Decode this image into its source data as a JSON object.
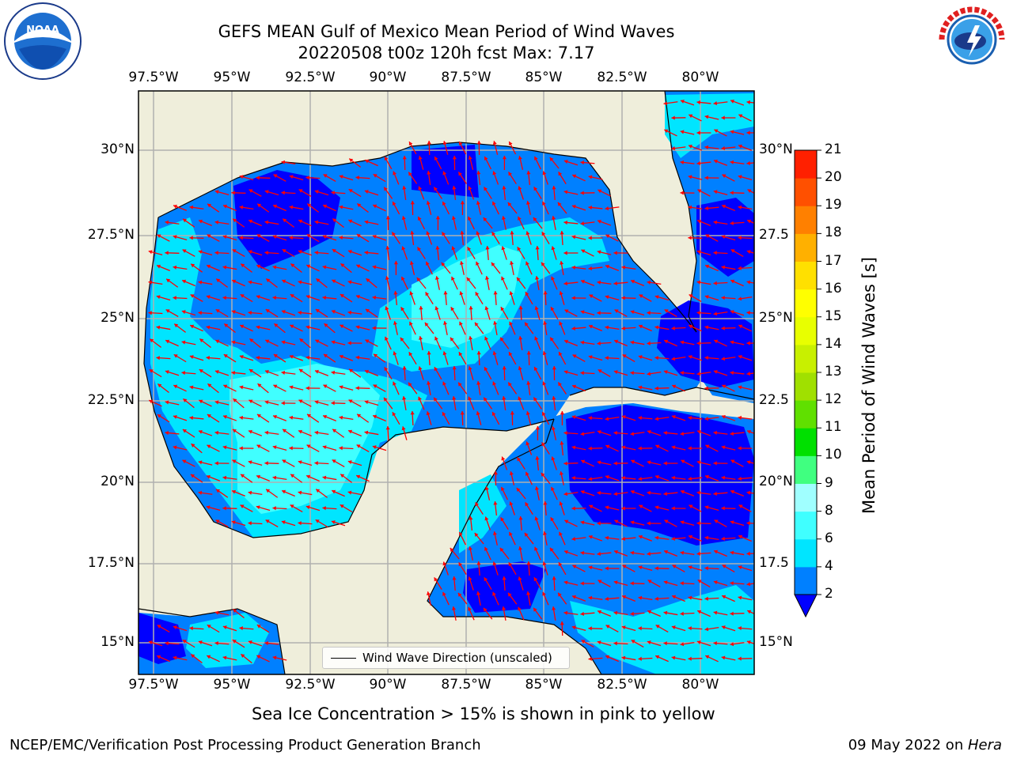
{
  "title": {
    "line1": "GEFS MEAN Gulf of Mexico Mean Period of Wind Waves",
    "line2": "20220508 t00z 120h fcst   Max: 7.17"
  },
  "axes": {
    "lon_ticks": [
      "97.5°W",
      "95°W",
      "92.5°W",
      "90°W",
      "87.5°W",
      "85°W",
      "82.5°W",
      "80°W"
    ],
    "lat_ticks_left": [
      "30°N",
      "27.5°N",
      "25°N",
      "22.5°N",
      "20°N",
      "17.5°N",
      "15°N"
    ],
    "lat_ticks_right": [
      "30°N",
      "27.5",
      "25°N",
      "22.5",
      "20°N",
      "17.5",
      "15°N"
    ]
  },
  "legend": {
    "label": "Wind Wave Direction (unscaled)"
  },
  "colorbar": {
    "title": "Mean Period of Wind Waves [s]",
    "levels": [
      "2",
      "4",
      "6",
      "8",
      "9",
      "10",
      "11",
      "12",
      "13",
      "14",
      "15",
      "16",
      "17",
      "18",
      "19",
      "20",
      "21"
    ],
    "colors": [
      "#0080ff",
      "#00e5ff",
      "#40ffff",
      "#a0ffff",
      "#40ff80",
      "#00e000",
      "#60e000",
      "#a0e000",
      "#c8f000",
      "#e8ff00",
      "#ffff00",
      "#ffe000",
      "#ffb000",
      "#ff8000",
      "#ff5000",
      "#ff2000",
      "#ff0000"
    ],
    "under_color": "#0000ff"
  },
  "colors": {
    "land": "#efeedb",
    "sea_2_4": "#0080ff",
    "sea_under": "#0000ff",
    "sea_4_6": "#00e5ff",
    "sea_6_8": "#40ffff",
    "sea_8_9": "#a0ffff",
    "arrow": "#ff0000",
    "grid": "#b0b0b0"
  },
  "icons": {
    "left_logo": "noaa-logo",
    "right_logo": "nws-logo"
  },
  "logo_text": {
    "noaa_center": "NOAA",
    "noaa_ring": "NATIONAL OCEANIC AND ATMOSPHERIC ADMINISTRATION · U.S. DEPARTMENT OF COMMERCE",
    "nws_ring": "NATIONAL WEATHER SERVICE"
  },
  "sea_ice_note": "Sea Ice Concentration > 15% is shown in pink to yellow",
  "footer": {
    "left": "NCEP/EMC/Verification Post Processing Product Generation Branch",
    "date": "09 May 2022 on ",
    "host": "Hera"
  }
}
